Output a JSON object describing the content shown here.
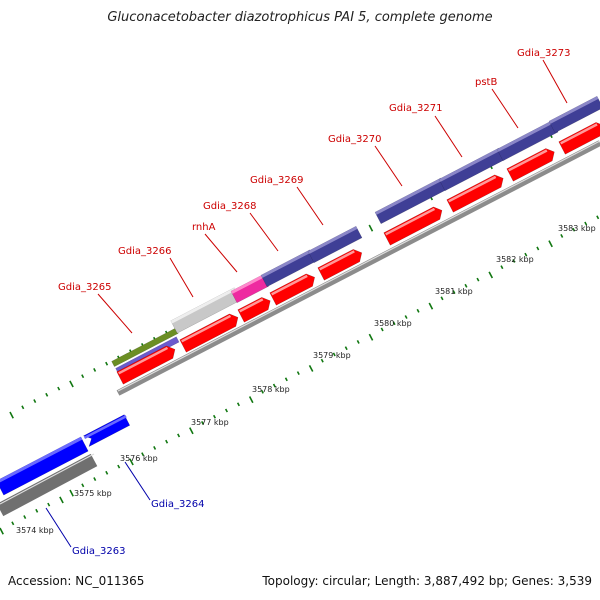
{
  "title": "Gluconacetobacter diazotrophicus PAI 5, complete genome",
  "footer": {
    "accession": "Accession: NC_011365",
    "stats": "Topology: circular; Length: 3,887,492 bp; Genes: 3,539"
  },
  "colors": {
    "forward_cds": "#3f3f96",
    "reverse_cds": "#ff0000",
    "blue_cds": "#0000ff",
    "rrna_green": "#6b8e23",
    "gray_feature": "#c8c8c8",
    "pink_feature": "#ee2aa0",
    "backbone": "#888888",
    "tick": "#117711",
    "upper_label": "#cc0000",
    "lower_label": "#0000aa"
  },
  "kbp_labels": [
    "3574 kbp",
    "3575 kbp",
    "3576 kbp",
    "3577 kbp",
    "3578 kbp",
    "3579 kbp",
    "3580 kbp",
    "3581 kbp",
    "3582 kbp",
    "3583 kbp"
  ],
  "genes_upper": [
    "Gdia_3265",
    "Gdia_3266",
    "rnhA",
    "Gdia_3268",
    "Gdia_3269",
    "Gdia_3270",
    "Gdia_3271",
    "pstB",
    "Gdia_3273"
  ],
  "genes_lower": [
    "Gdia_3264",
    "Gdia_3263"
  ]
}
